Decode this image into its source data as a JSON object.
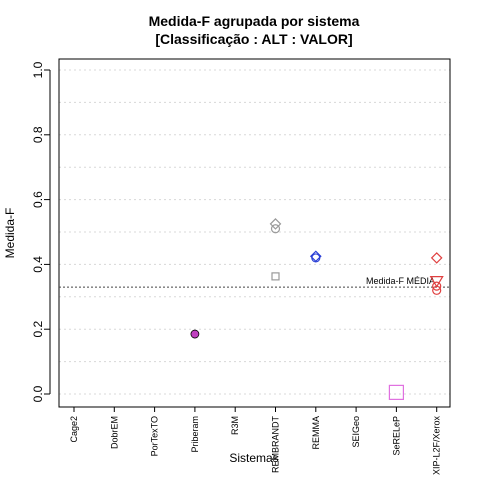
{
  "chart_data": {
    "type": "scatter",
    "title": "Medida-F agrupada por sistema",
    "subtitle": "[Classificação : ALT : VALOR]",
    "xlabel": "Sistemas",
    "ylabel": "Medida-F",
    "ylim": [
      0,
      1.0
    ],
    "yticks": [
      "0.0",
      "0.2",
      "0.4",
      "0.6",
      "0.8",
      "1.0"
    ],
    "grid": "horizontal dotted",
    "categories": [
      "Cage2",
      "DobrEM",
      "PorTexTO",
      "Priberam",
      "R3M",
      "REMBRANDT",
      "REMMA",
      "SEIGeo",
      "SeRELeP",
      "XIP-L2F/Xerox"
    ],
    "points": [
      {
        "category": "Priberam",
        "y": 0.185,
        "shape": "circle-filled",
        "color": "#c040c0"
      },
      {
        "category": "REMBRANDT",
        "y": 0.525,
        "shape": "diamond",
        "color": "#9a9a9a"
      },
      {
        "category": "REMBRANDT",
        "y": 0.51,
        "shape": "circle",
        "color": "#9a9a9a"
      },
      {
        "category": "REMBRANDT",
        "y": 0.363,
        "shape": "square",
        "color": "#9a9a9a"
      },
      {
        "category": "REMMA",
        "y": 0.425,
        "shape": "diamond",
        "color": "#2a3fd6"
      },
      {
        "category": "REMMA",
        "y": 0.42,
        "shape": "circle",
        "color": "#2a3fd6"
      },
      {
        "category": "SeRELeP",
        "y": 0.005,
        "shape": "square-large",
        "color": "#e070e0"
      },
      {
        "category": "XIP-L2F/Xerox",
        "y": 0.42,
        "shape": "diamond",
        "color": "#e04040"
      },
      {
        "category": "XIP-L2F/Xerox",
        "y": 0.35,
        "shape": "triangle-down",
        "color": "#e04040"
      },
      {
        "category": "XIP-L2F/Xerox",
        "y": 0.333,
        "shape": "circle",
        "color": "#e04040"
      },
      {
        "category": "XIP-L2F/Xerox",
        "y": 0.32,
        "shape": "circle",
        "color": "#e04040"
      }
    ],
    "reference_line": {
      "label": "Medida-F MÉDIA",
      "y": 0.33
    }
  }
}
